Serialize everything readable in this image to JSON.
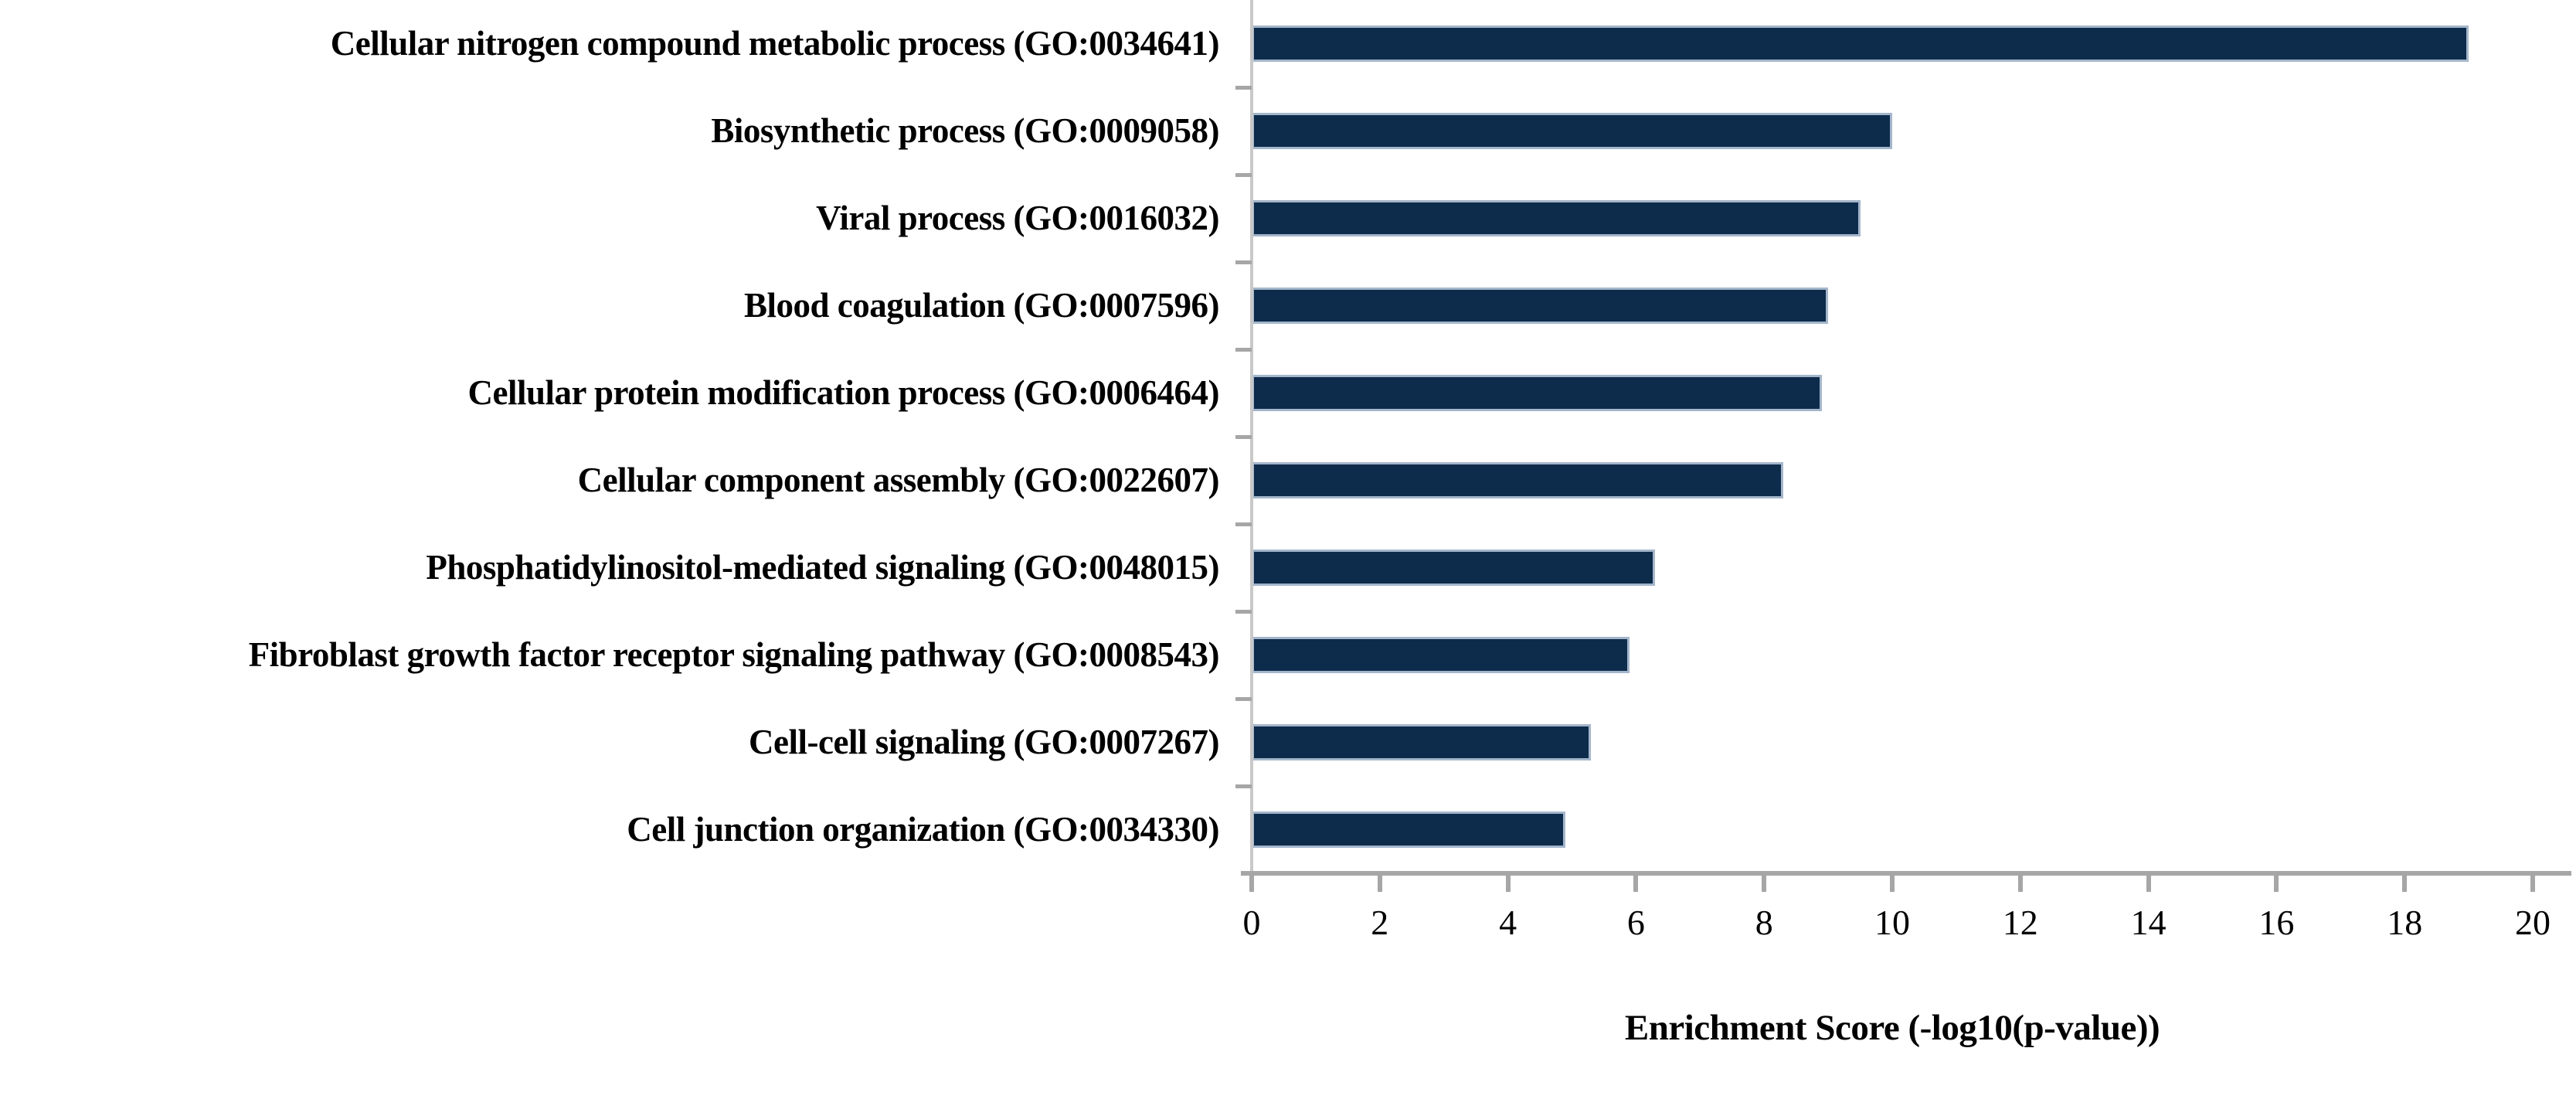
{
  "figure": {
    "background": "#ffffff"
  },
  "chart_data": {
    "type": "bar",
    "orientation": "horizontal",
    "title": "",
    "xlabel": "Enrichment Score (-log10(p-value))",
    "ylabel": "",
    "xlim": [
      0,
      20
    ],
    "xticks": [
      0,
      2,
      4,
      6,
      8,
      10,
      12,
      14,
      16,
      18,
      20
    ],
    "grid": false,
    "legend_position": "none",
    "categories": [
      "Cellular nitrogen compound metabolic process (GO:0034641)",
      "Biosynthetic process (GO:0009058)",
      "Viral process (GO:0016032)",
      "Blood coagulation (GO:0007596)",
      "Cellular protein modification process (GO:0006464)",
      "Cellular component assembly (GO:0022607)",
      "Phosphatidylinositol-mediated signaling (GO:0048015)",
      "Fibroblast growth factor receptor signaling pathway (GO:0008543)",
      "Cell-cell signaling (GO:0007267)",
      "Cell junction organization (GO:0034330)"
    ],
    "values": [
      19.0,
      10.0,
      9.5,
      9.0,
      8.9,
      8.3,
      6.3,
      5.9,
      5.3,
      4.9
    ],
    "bar_color": "#0d2b4a",
    "bar_border_color": "#a4b6cb",
    "axis_color": "#a6a6a6",
    "yaxis_line_color": "#c9c9c9",
    "text_color": "#000000"
  }
}
